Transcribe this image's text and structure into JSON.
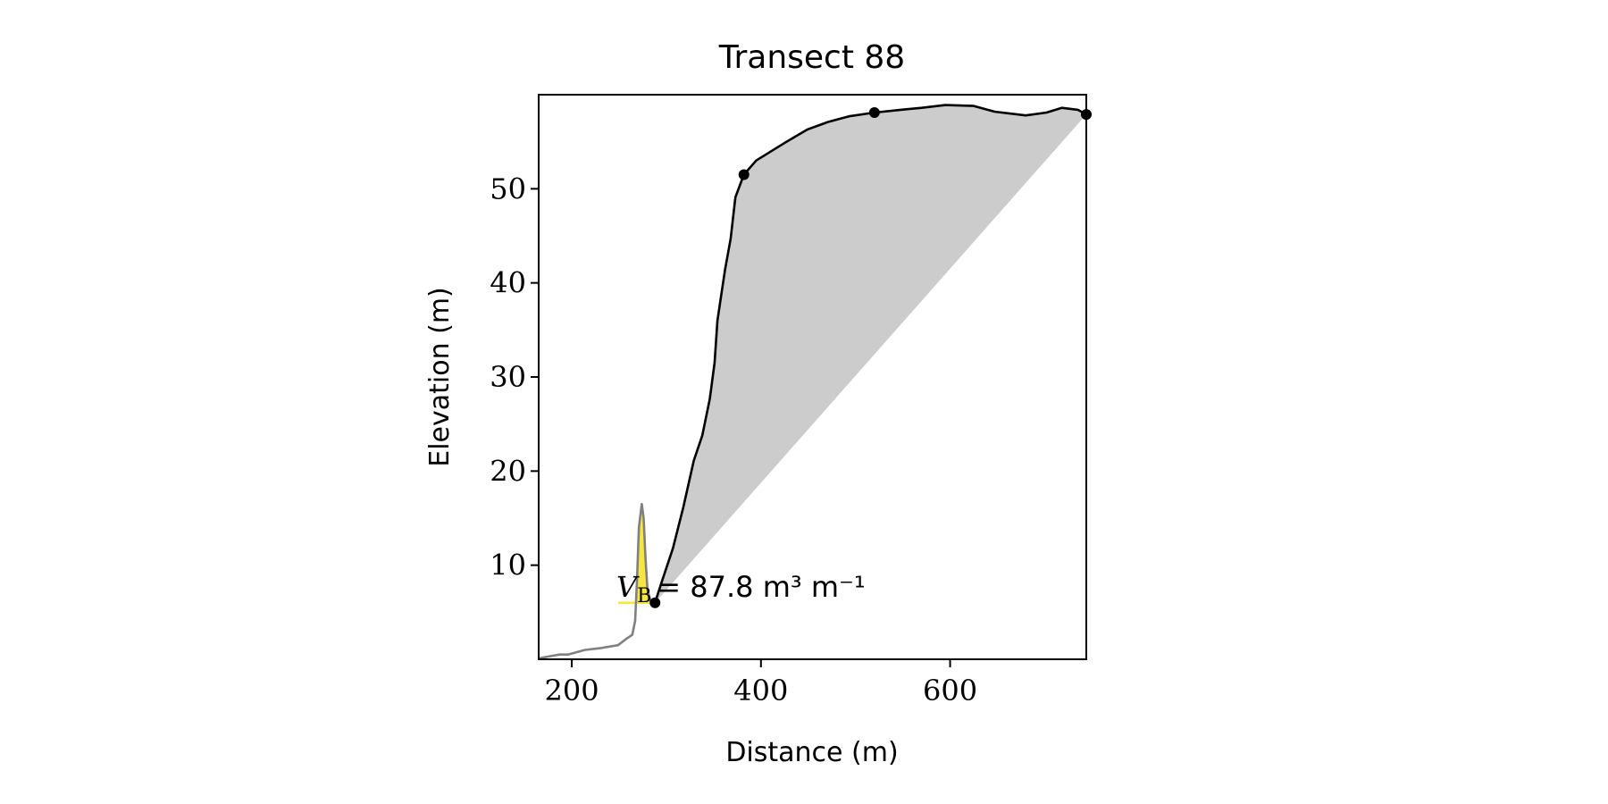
{
  "chart_data": {
    "type": "line",
    "title": "Transect 88",
    "x_label": "Distance (m)",
    "y_label": "Elevation (m)",
    "xlim": [
      165,
      744
    ],
    "ylim": [
      0,
      60
    ],
    "xticks": [
      200,
      400,
      600
    ],
    "yticks": [
      10,
      20,
      30,
      40,
      50
    ],
    "annotation": {
      "symbol": "V",
      "subscript": "B",
      "text": "= 87.8 m³ m⁻¹"
    },
    "areas": [
      {
        "color": "#f5e642",
        "x": [
          269,
          271,
          274,
          276,
          278,
          280,
          283,
          288,
          269
        ],
        "values": [
          8.5,
          14,
          16.5,
          15,
          10.7,
          7.4,
          6.3,
          6,
          6
        ]
      }
    ],
    "series": [
      {
        "color": "#f5e642",
        "x": [
          249,
          288
        ],
        "values": [
          6,
          6
        ]
      },
      {
        "color": "#808080",
        "x": [
          165,
          187,
          196,
          214,
          231,
          249,
          258,
          264,
          267,
          269,
          271,
          274,
          276,
          278,
          280,
          283,
          288
        ],
        "values": [
          0.1,
          0.5,
          0.5,
          1,
          1.2,
          1.5,
          2.2,
          2.6,
          4.1,
          8.5,
          14,
          16.5,
          15,
          10.7,
          7.4,
          6.3,
          6
        ]
      },
      {
        "color": "#000000",
        "fill": "#cccccc",
        "x": [
          288,
          296,
          307,
          318,
          329,
          338,
          346,
          351,
          354,
          362,
          368,
          373,
          382,
          395,
          411,
          427,
          449,
          471,
          493,
          520,
          548,
          570,
          595,
          625,
          647,
          680,
          702,
          718,
          735,
          744
        ],
        "values": [
          6,
          8.5,
          11.8,
          16.2,
          21.1,
          23.8,
          27.7,
          31.5,
          36,
          41.4,
          44.7,
          49.1,
          51.5,
          53,
          54,
          55,
          56.3,
          57.1,
          57.7,
          58.1,
          58.4,
          58.6,
          58.9,
          58.8,
          58.2,
          57.8,
          58.1,
          58.6,
          58.4,
          57.9
        ]
      }
    ],
    "points": {
      "color": "#000000",
      "x": [
        288,
        382,
        520,
        744
      ],
      "values": [
        6,
        51.5,
        58.1,
        57.9
      ]
    }
  }
}
